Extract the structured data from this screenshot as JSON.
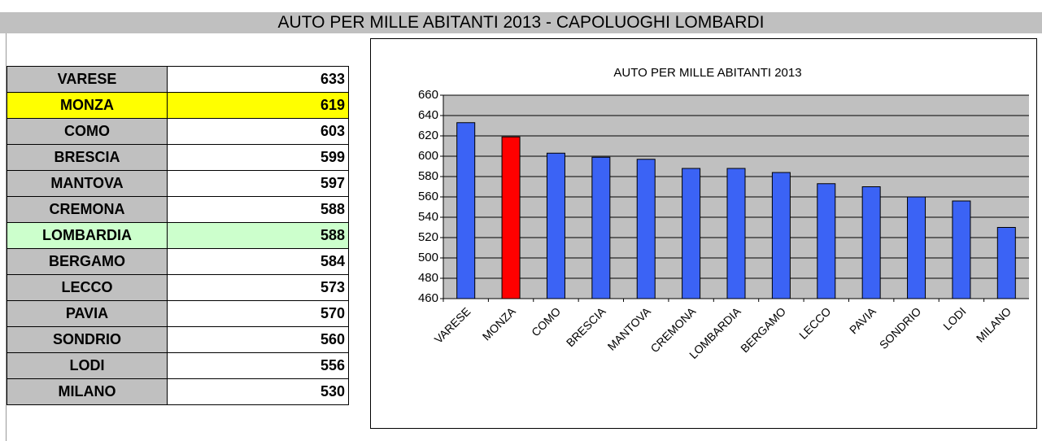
{
  "title": "AUTO PER MILLE ABITANTI 2013 - CAPOLUOGHI LOMBARDI",
  "table": {
    "rows": [
      [
        "VARESE",
        633
      ],
      [
        "MONZA",
        619
      ],
      [
        "COMO",
        603
      ],
      [
        "BRESCIA",
        599
      ],
      [
        "MANTOVA",
        597
      ],
      [
        "CREMONA",
        588
      ],
      [
        "LOMBARDIA",
        588
      ],
      [
        "BERGAMO",
        584
      ],
      [
        "LECCO",
        573
      ],
      [
        "PAVIA",
        570
      ],
      [
        "SONDRIO",
        560
      ],
      [
        "LODI",
        556
      ],
      [
        "MILANO",
        530
      ]
    ]
  },
  "chart_data": {
    "type": "bar",
    "title": "AUTO PER MILLE ABITANTI 2013",
    "categories": [
      "VARESE",
      "MONZA",
      "COMO",
      "BRESCIA",
      "MANTOVA",
      "CREMONA",
      "LOMBARDIA",
      "BERGAMO",
      "LECCO",
      "PAVIA",
      "SONDRIO",
      "LODI",
      "MILANO"
    ],
    "values": [
      633,
      619,
      603,
      599,
      597,
      588,
      588,
      584,
      573,
      570,
      560,
      556,
      530
    ],
    "colors": [
      "#3b63f5",
      "#ff0000",
      "#3b63f5",
      "#3b63f5",
      "#3b63f5",
      "#3b63f5",
      "#3b63f5",
      "#3b63f5",
      "#3b63f5",
      "#3b63f5",
      "#3b63f5",
      "#3b63f5",
      "#3b63f5"
    ],
    "ylim": [
      460,
      660
    ],
    "yticks": [
      460,
      480,
      500,
      520,
      540,
      560,
      580,
      600,
      620,
      640,
      660
    ],
    "grid": true
  }
}
